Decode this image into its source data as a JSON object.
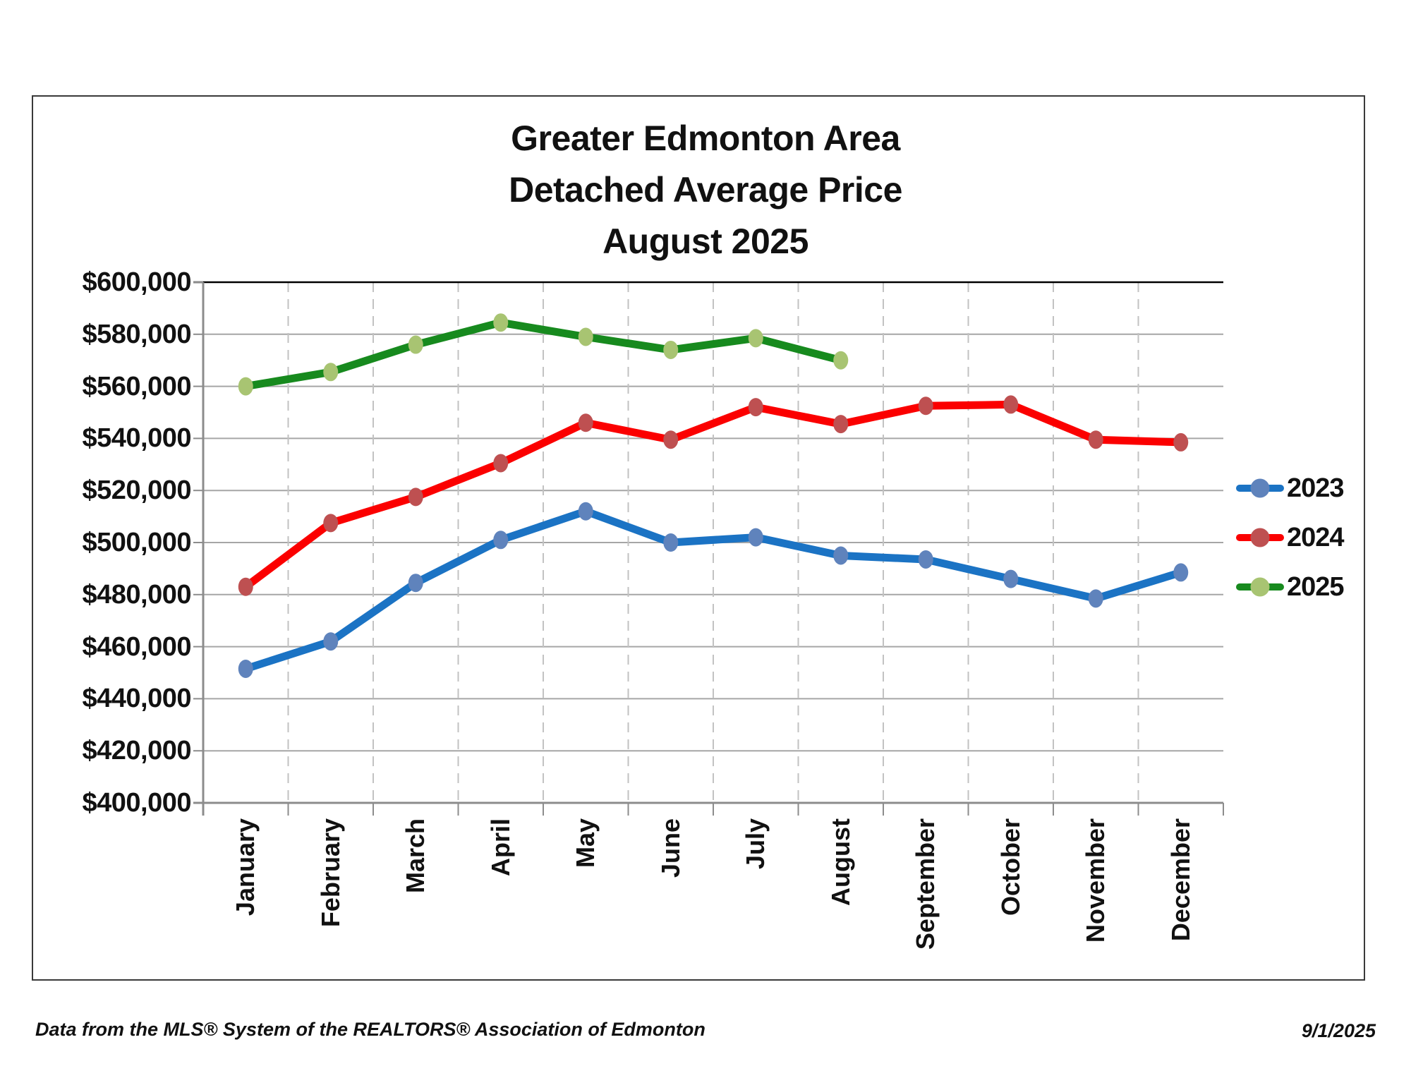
{
  "chart": {
    "title_lines": [
      "Greater Edmonton Area",
      "Detached Average Price",
      "August 2025"
    ],
    "footer_left": "Data from the MLS® System of the REALTORS® Association of Edmonton",
    "footer_right": "9/1/2025"
  },
  "chart_data": {
    "type": "line",
    "title": "Greater Edmonton Area Detached Average Price August 2025",
    "categories": [
      "January",
      "February",
      "March",
      "April",
      "May",
      "June",
      "July",
      "August",
      "September",
      "October",
      "November",
      "December"
    ],
    "series": [
      {
        "name": "2023",
        "line_color": "#1B73C4",
        "marker_color": "#5F83BC",
        "values": [
          451500,
          462000,
          484500,
          501000,
          512000,
          500000,
          502000,
          495000,
          493500,
          486000,
          478500,
          488500
        ]
      },
      {
        "name": "2024",
        "line_color": "#FB0000",
        "marker_color": "#BE5051",
        "values": [
          483000,
          507500,
          517500,
          530500,
          546000,
          539500,
          552000,
          545500,
          552500,
          553000,
          539500,
          538500
        ]
      },
      {
        "name": "2025",
        "line_color": "#178A1E",
        "marker_color": "#A8C472",
        "values": [
          560000,
          565500,
          576000,
          584500,
          579000,
          574000,
          578500,
          570000
        ]
      }
    ],
    "ylim": [
      400000,
      600000
    ],
    "ytick_step": 20000,
    "ytick_labels": [
      "$600,000",
      "$580,000",
      "$560,000",
      "$540,000",
      "$520,000",
      "$500,000",
      "$480,000",
      "$460,000",
      "$440,000",
      "$420,000",
      "$400,000"
    ],
    "xlabel": "",
    "ylabel": "",
    "grid": {
      "horizontal": "solid",
      "vertical": "dashed-at-category-boundaries"
    },
    "legend_position": "right-outside",
    "legend_entries": [
      "2023",
      "2024",
      "2025"
    ],
    "colors": {
      "gridline": "#A6A6A6",
      "gridline_dashed": "#C2C2C2",
      "axis": "#8C8C8C",
      "top_border_line": "#000000",
      "frame_border": "#3A3A3A",
      "text": "#111111"
    }
  }
}
